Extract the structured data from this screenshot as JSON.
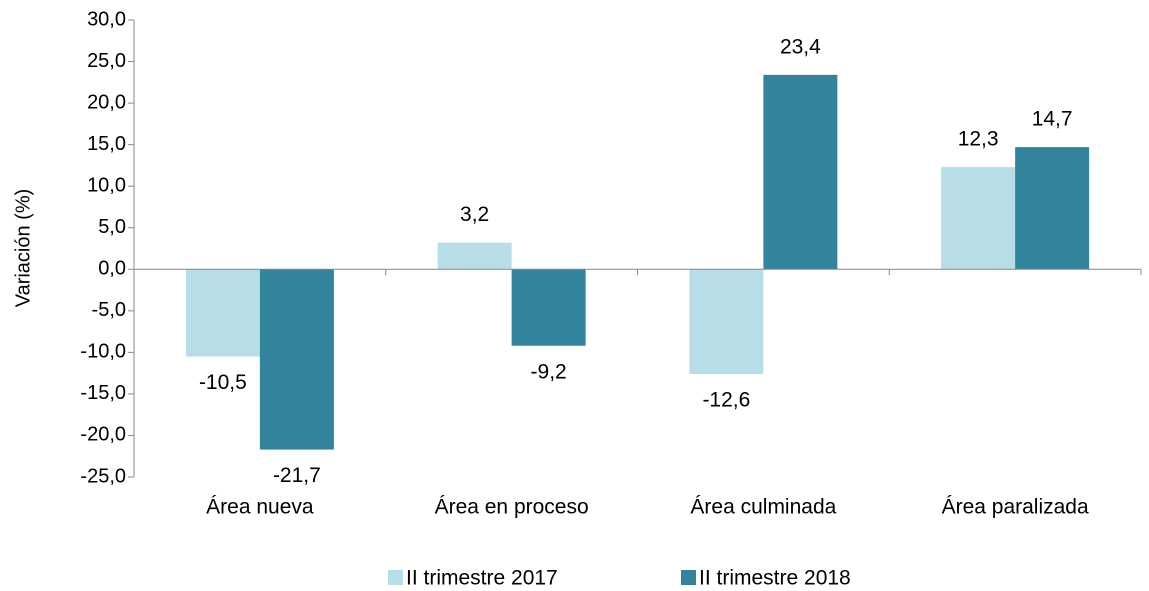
{
  "chart_data": {
    "type": "bar",
    "y_label": "Variación (%)",
    "categories": [
      "Área nueva",
      "Área en proceso",
      "Área culminada",
      "Área paralizada"
    ],
    "series": [
      {
        "name": "II trimestre 2017",
        "color": "#b7dde6",
        "values": [
          -10.5,
          3.2,
          -12.6,
          12.3
        ],
        "value_labels": [
          "-10,5",
          "3,2",
          "-12,6",
          "12,3"
        ]
      },
      {
        "name": "II trimestre 2018",
        "color": "#31849b",
        "values": [
          -21.7,
          -9.2,
          23.4,
          14.7
        ],
        "value_labels": [
          "-21,7",
          "-9,2",
          "23,4",
          "14,7"
        ]
      }
    ],
    "ylim": [
      -25,
      30
    ],
    "yticks": [
      {
        "value": -25,
        "label": "-25,0"
      },
      {
        "value": -20,
        "label": "-20,0"
      },
      {
        "value": -15,
        "label": "-15,0"
      },
      {
        "value": -10,
        "label": "-10,0"
      },
      {
        "value": -5,
        "label": "-5,0"
      },
      {
        "value": 0,
        "label": "0,0"
      },
      {
        "value": 5,
        "label": "5,0"
      },
      {
        "value": 10,
        "label": "10,0"
      },
      {
        "value": 15,
        "label": "15,0"
      },
      {
        "value": 20,
        "label": "20,0"
      },
      {
        "value": 25,
        "label": "25,0"
      },
      {
        "value": 30,
        "label": "30,0"
      }
    ],
    "legend": "bottom"
  }
}
